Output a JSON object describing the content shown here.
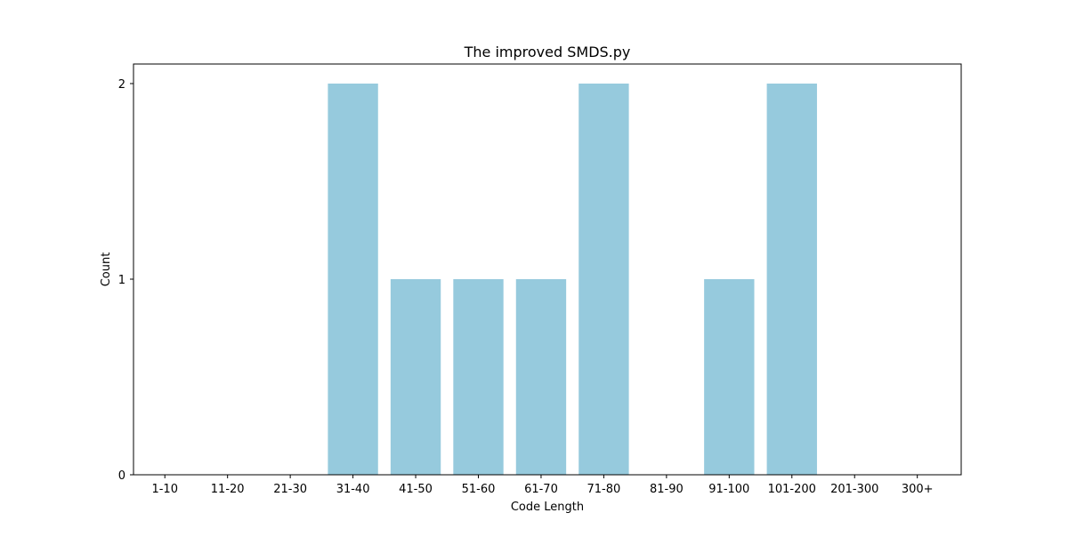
{
  "chart_data": {
    "type": "bar",
    "title": "The improved SMDS.py",
    "xlabel": "Code Length",
    "ylabel": "Count",
    "categories": [
      "1-10",
      "11-20",
      "21-30",
      "31-40",
      "41-50",
      "51-60",
      "61-70",
      "71-80",
      "81-90",
      "91-100",
      "101-200",
      "201-300",
      "300+"
    ],
    "values": [
      0,
      0,
      0,
      2,
      1,
      1,
      1,
      2,
      0,
      1,
      2,
      0,
      0
    ],
    "yticks": [
      "0",
      "1",
      "2"
    ],
    "ylim": [
      0,
      2.1
    ],
    "grid": false,
    "legend": "none",
    "bar_color": "#96cadd"
  }
}
